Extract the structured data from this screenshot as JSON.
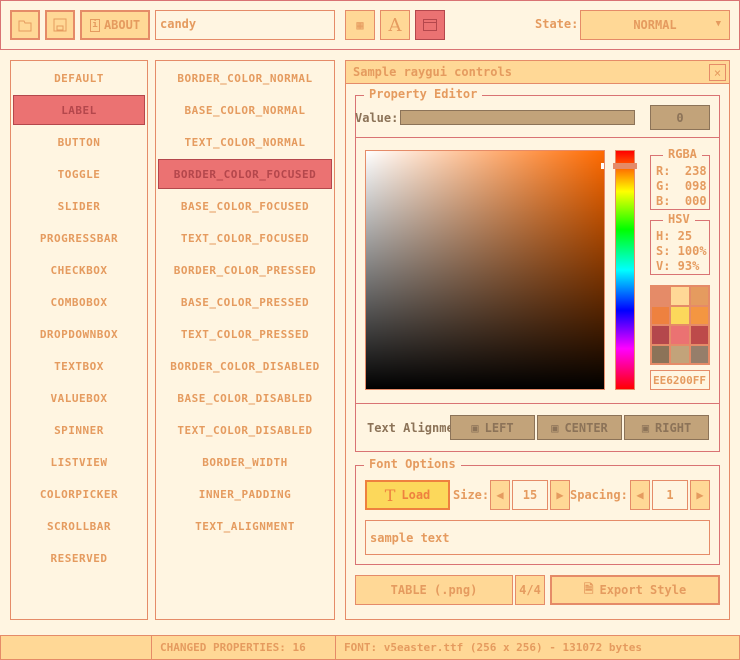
{
  "toolbar": {
    "about_label": "ABOUT",
    "style_name": "candy",
    "state_label": "State:",
    "state_value": "NORMAL"
  },
  "controls_list": {
    "items": [
      "DEFAULT",
      "LABEL",
      "BUTTON",
      "TOGGLE",
      "SLIDER",
      "PROGRESSBAR",
      "CHECKBOX",
      "COMBOBOX",
      "DROPDOWNBOX",
      "TEXTBOX",
      "VALUEBOX",
      "SPINNER",
      "LISTVIEW",
      "COLORPICKER",
      "SCROLLBAR",
      "RESERVED"
    ],
    "selected": 1
  },
  "props_list": {
    "items": [
      "BORDER_COLOR_NORMAL",
      "BASE_COLOR_NORMAL",
      "TEXT_COLOR_NORMAL",
      "BORDER_COLOR_FOCUSED",
      "BASE_COLOR_FOCUSED",
      "TEXT_COLOR_FOCUSED",
      "BORDER_COLOR_PRESSED",
      "BASE_COLOR_PRESSED",
      "TEXT_COLOR_PRESSED",
      "BORDER_COLOR_DISABLED",
      "BASE_COLOR_DISABLED",
      "TEXT_COLOR_DISABLED",
      "BORDER_WIDTH",
      "INNER_PADDING",
      "TEXT_ALIGNMENT"
    ],
    "selected": 3
  },
  "window": {
    "title": "Sample raygui controls",
    "close": "×",
    "property_editor": {
      "title": "Property Editor",
      "value_label": "Value:",
      "value": "0"
    },
    "color": {
      "hue_color": "#ff6a00",
      "rgba_title": "RGBA",
      "r": "R:  238",
      "g": "G:  098",
      "b": "B:  000",
      "hsv_title": "HSV",
      "h": "H: 25",
      "s": "S: 100%",
      "v": "V: 93%",
      "hex": "EE6200FF",
      "palette": [
        "#e58b68",
        "#ffd896",
        "#e59b5f",
        "#ee813f",
        "#fcd85b",
        "#f49641",
        "#b4474c",
        "#eb7272",
        "#bd4a4a",
        "#8c7358",
        "#c2a37a",
        "#967e6a"
      ]
    },
    "alignment": {
      "label": "Text Alignment",
      "left": "LEFT",
      "center": "CENTER",
      "right": "RIGHT"
    },
    "font": {
      "title": "Font Options",
      "load": "Load",
      "size_label": "Size:",
      "size": "15",
      "spacing_label": "Spacing:",
      "spacing": "1",
      "sample": "sample text"
    },
    "table_button": "TABLE (.png)",
    "page": "4/4",
    "export_button": "Export Style"
  },
  "status": {
    "changed": "CHANGED PROPERTIES: 16",
    "font": "FONT: v5easter.ttf (256 x 256) - 131072 bytes"
  },
  "colors": {
    "background": "#fff5e1",
    "border": "#e58b68",
    "base": "#ffd896",
    "text": "#e59b5f",
    "selected": "#eb7272"
  }
}
